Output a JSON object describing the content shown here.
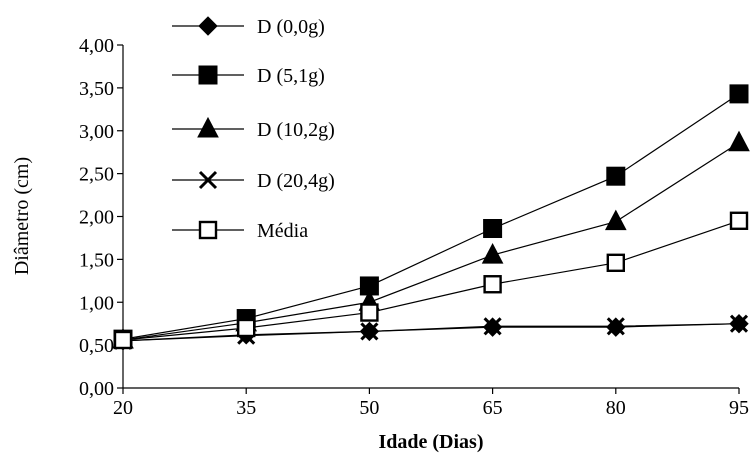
{
  "chart_data": {
    "type": "line",
    "title": "",
    "xlabel": "Idade (Dias)",
    "ylabel": "Diâmetro (cm)",
    "x": [
      20,
      35,
      50,
      65,
      80,
      95
    ],
    "x_tick_labels": [
      "20",
      "35",
      "50",
      "65",
      "80",
      "95"
    ],
    "ylim": [
      0,
      4
    ],
    "y_ticks": [
      0,
      0.5,
      1,
      1.5,
      2,
      2.5,
      3,
      3.5,
      4
    ],
    "y_tick_labels": [
      "0,00",
      "0,50",
      "1,00",
      "1,50",
      "2,00",
      "2,50",
      "3,00",
      "3,50",
      "4,00"
    ],
    "grid": false,
    "legend_position": "top-left",
    "series": [
      {
        "name": "D (0,0g)",
        "marker": "diamond",
        "values": [
          0.55,
          0.62,
          0.66,
          0.71,
          0.71,
          0.75
        ]
      },
      {
        "name": "D (5,1g)",
        "marker": "square",
        "values": [
          0.57,
          0.81,
          1.19,
          1.86,
          2.47,
          3.43
        ]
      },
      {
        "name": "D (10,2g)",
        "marker": "triangle",
        "values": [
          0.56,
          0.76,
          1.0,
          1.55,
          1.94,
          2.86
        ]
      },
      {
        "name": "D (20,4g)",
        "marker": "x",
        "values": [
          0.55,
          0.61,
          0.66,
          0.72,
          0.72,
          0.75
        ]
      },
      {
        "name": "Média",
        "marker": "open-square",
        "values": [
          0.56,
          0.7,
          0.88,
          1.21,
          1.46,
          1.95
        ]
      }
    ]
  }
}
